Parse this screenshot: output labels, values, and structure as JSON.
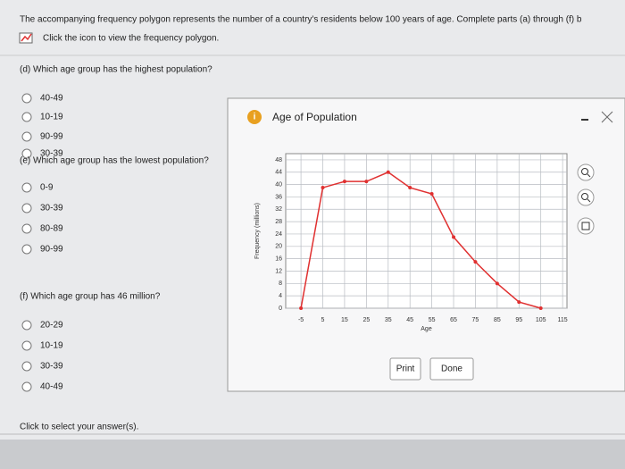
{
  "header": {
    "intro": "The accompanying frequency polygon represents the number of a country's residents below 100 years of age. Complete parts (a) through (f) b",
    "link": "Click the icon to view the frequency polygon."
  },
  "questions": [
    {
      "prompt": "(d) Which age group has the highest population?",
      "options": [
        "40-49",
        "10-19",
        "90-99",
        "30-39"
      ]
    },
    {
      "prompt": "(e) Which age group has the lowest population?",
      "options": [
        "0-9",
        "30-39",
        "80-89",
        "90-99"
      ]
    },
    {
      "prompt": "(f) Which age group has 46 million?",
      "options": [
        "20-29",
        "10-19",
        "30-39",
        "40-49"
      ]
    }
  ],
  "footer": "Click to select your answer(s).",
  "popup": {
    "title": "Age of Population",
    "buttons": [
      "Print",
      "Done"
    ]
  },
  "chart_data": {
    "type": "line",
    "xlabel": "Age",
    "ylabel": "Frequency (millions)",
    "color": "#e03030",
    "x": [
      -5,
      5,
      15,
      25,
      35,
      45,
      55,
      65,
      75,
      85,
      95,
      105
    ],
    "values": [
      0,
      39,
      41,
      41,
      44,
      39,
      37,
      23,
      15,
      8,
      2,
      0
    ],
    "xlim": [
      -12,
      117
    ],
    "ylim": [
      0,
      50
    ],
    "xticks": [
      -5,
      5,
      15,
      25,
      35,
      45,
      55,
      65,
      75,
      85,
      95,
      105,
      115
    ],
    "yticks": [
      0,
      4,
      8,
      12,
      16,
      20,
      24,
      28,
      32,
      36,
      40,
      44,
      48
    ],
    "grid": true
  }
}
